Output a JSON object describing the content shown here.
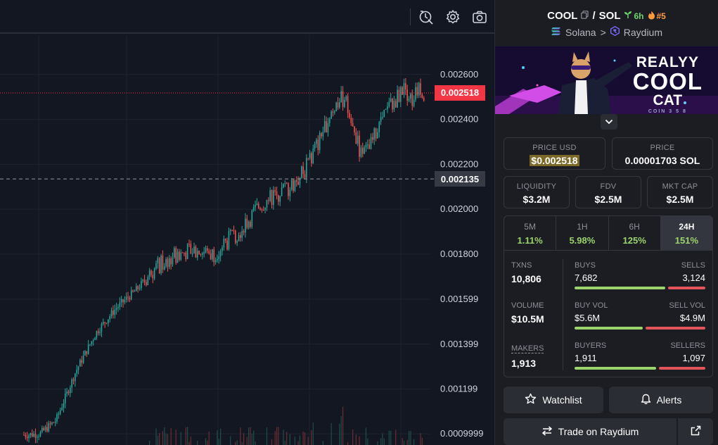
{
  "toolbar": {
    "icons": [
      "replay-icon",
      "gear-icon",
      "camera-icon"
    ]
  },
  "chart_data": {
    "type": "candlestick",
    "y_tick_labels": [
      "0.002600",
      "0.002400",
      "0.002200",
      "0.002000",
      "0.001800",
      "0.001599",
      "0.001399",
      "0.001199",
      "0.0009999"
    ],
    "y_ticks": [
      0.0026,
      0.0024,
      0.0022,
      0.002,
      0.0018,
      0.001599,
      0.001399,
      0.001199,
      0.0009999
    ],
    "ylim": [
      0.00095,
      0.002775
    ],
    "last_price": 0.002518,
    "last_price_label": "0.002518",
    "crosshair_price": 0.002135,
    "crosshair_price_label": "0.002135",
    "colors": {
      "up": "#26a69a",
      "down": "#ef5350",
      "last_price_bg": "#f23645",
      "crosshair_bg": "#363a45"
    },
    "grid": true,
    "close_path": [
      [
        0,
        0.000995
      ],
      [
        0.04,
        0.001
      ],
      [
        0.08,
        0.00106
      ],
      [
        0.13,
        0.00128
      ],
      [
        0.18,
        0.00145
      ],
      [
        0.23,
        0.00156
      ],
      [
        0.28,
        0.00164
      ],
      [
        0.33,
        0.00174
      ],
      [
        0.38,
        0.0018
      ],
      [
        0.42,
        0.00182
      ],
      [
        0.47,
        0.0018
      ],
      [
        0.51,
        0.00186
      ],
      [
        0.55,
        0.00193
      ],
      [
        0.59,
        0.00202
      ],
      [
        0.63,
        0.00207
      ],
      [
        0.67,
        0.00211
      ],
      [
        0.7,
        0.00217
      ],
      [
        0.74,
        0.00232
      ],
      [
        0.77,
        0.00245
      ],
      [
        0.8,
        0.0025
      ],
      [
        0.82,
        0.00236
      ],
      [
        0.84,
        0.00225
      ],
      [
        0.86,
        0.00226
      ],
      [
        0.89,
        0.00239
      ],
      [
        0.92,
        0.00247
      ],
      [
        0.95,
        0.00254
      ],
      [
        0.97,
        0.00249
      ],
      [
        0.99,
        0.00254
      ],
      [
        1.0,
        0.002518
      ]
    ]
  },
  "pair": {
    "base": "COOL",
    "separator": "/",
    "quote": "SOL",
    "age": "6h",
    "rank": "#5",
    "chain": "Solana",
    "chevron": ">",
    "dex": "Raydium"
  },
  "banner": {
    "line1": "REALYY",
    "line2": "COOL",
    "line3": "CAT",
    "line4": "COIN 3 5 8"
  },
  "price_usd": {
    "label": "PRICE USD",
    "value": "$0.002518"
  },
  "price_native": {
    "label": "PRICE",
    "value": "0.00001703 SOL"
  },
  "liquidity": {
    "label": "LIQUIDITY",
    "value": "$3.2M"
  },
  "fdv": {
    "label": "FDV",
    "value": "$2.5M"
  },
  "mkt_cap": {
    "label": "MKT CAP",
    "value": "$2.5M"
  },
  "timeframes": [
    {
      "label": "5M",
      "change": "1.11%"
    },
    {
      "label": "1H",
      "change": "5.98%"
    },
    {
      "label": "6H",
      "change": "125%"
    },
    {
      "label": "24H",
      "change": "151%"
    }
  ],
  "stats": {
    "txns": {
      "label": "TXNS",
      "value": "10,806"
    },
    "volume": {
      "label": "VOLUME",
      "value": "$10.5M"
    },
    "makers": {
      "label": "MAKERS",
      "value": "1,913"
    },
    "buys": {
      "label": "BUYS",
      "value": "7,682",
      "ratio": 0.711
    },
    "sells": {
      "label": "SELLS",
      "value": "3,124"
    },
    "buy_vol": {
      "label": "BUY VOL",
      "value": "$5.6M",
      "ratio": 0.533
    },
    "sell_vol": {
      "label": "SELL VOL",
      "value": "$4.9M"
    },
    "buyers": {
      "label": "BUYERS",
      "value": "1,911",
      "ratio": 0.635
    },
    "sellers": {
      "label": "SELLERS",
      "value": "1,097"
    }
  },
  "buttons": {
    "watchlist": "Watchlist",
    "alerts": "Alerts",
    "trade": "Trade on Raydium"
  }
}
